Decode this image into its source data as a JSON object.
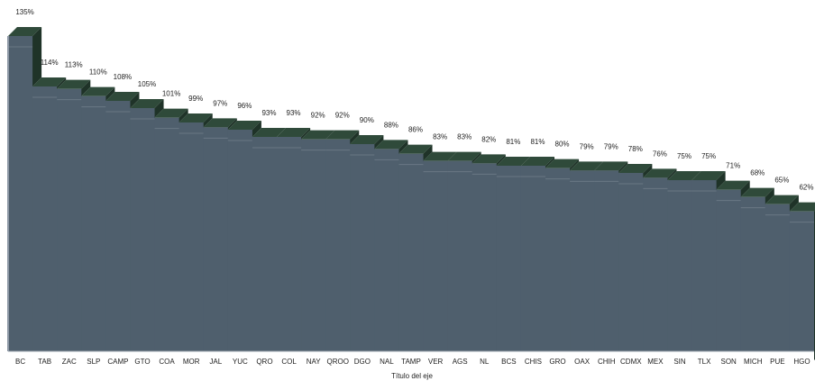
{
  "chart_data": {
    "type": "bar",
    "style": "3d-area-steps",
    "categories": [
      "BC",
      "TAB",
      "ZAC",
      "SLP",
      "CAMP",
      "GTO",
      "COA",
      "MOR",
      "JAL",
      "YUC",
      "QRO",
      "COL",
      "NAY",
      "QROO",
      "DGO",
      "NAL",
      "TAMP",
      "VER",
      "AGS",
      "NL",
      "BCS",
      "CHIS",
      "GRO",
      "OAX",
      "CHIH",
      "CDMX",
      "MEX",
      "SIN",
      "TLX",
      "SON",
      "MICH",
      "PUE",
      "HGO"
    ],
    "values": [
      135,
      114,
      113,
      110,
      108,
      105,
      101,
      99,
      97,
      96,
      93,
      93,
      92,
      92,
      90,
      88,
      86,
      83,
      83,
      82,
      81,
      81,
      80,
      79,
      79,
      78,
      76,
      75,
      75,
      71,
      68,
      65,
      62
    ],
    "value_labels": [
      "135%",
      "114%",
      "113%",
      "110%",
      "108%",
      "105%",
      "101%",
      "99%",
      "97%",
      "96%",
      "93%",
      "93%",
      "92%",
      "92%",
      "90%",
      "88%",
      "86%",
      "83%",
      "83%",
      "82%",
      "81%",
      "81%",
      "80%",
      "79%",
      "79%",
      "78%",
      "76%",
      "75%",
      "75%",
      "71%",
      "68%",
      "65%",
      "62%"
    ],
    "xlabel": "Título del eje",
    "ylabel": "",
    "ylim": [
      0,
      140
    ],
    "grid": false,
    "legend": "none",
    "colors": {
      "front": "#4f5f6d",
      "top": "#2f4a3a",
      "side": "#1f3328",
      "edge": "#7b8794",
      "highlight": "#8e99a6"
    }
  }
}
